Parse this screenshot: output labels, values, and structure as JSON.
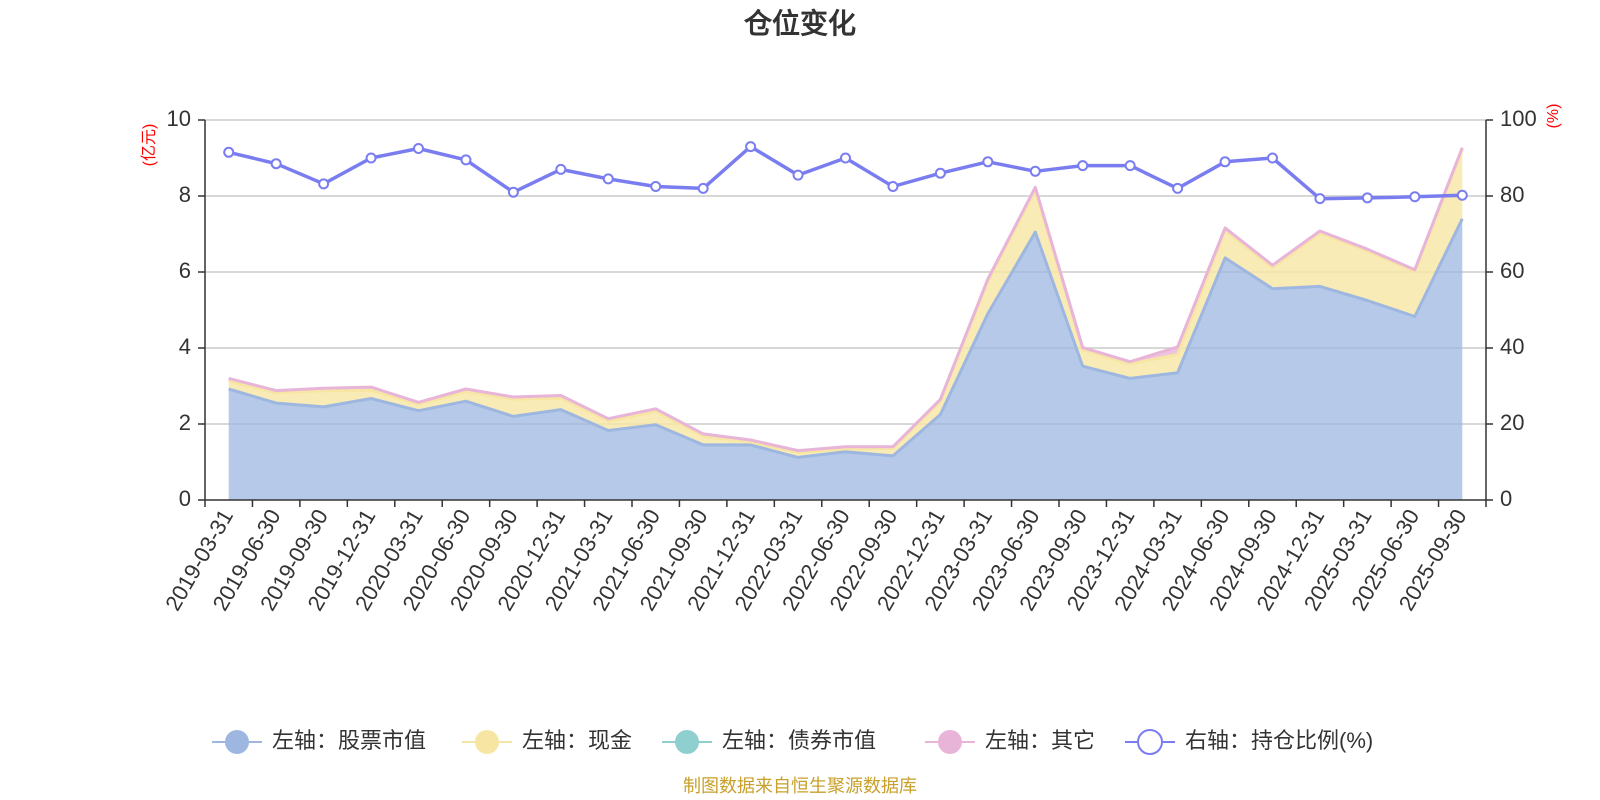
{
  "chart_data": {
    "type": "area",
    "title": "仓位变化",
    "left_axis_unit": "(亿元)",
    "right_axis_unit": "(%)",
    "ylim_left": [
      0,
      10
    ],
    "ylim_right": [
      0,
      100
    ],
    "left_ticks": [
      "0",
      "2",
      "4",
      "6",
      "8",
      "10"
    ],
    "right_ticks": [
      "0",
      "20",
      "40",
      "60",
      "80",
      "100"
    ],
    "categories": [
      "2019-03-31",
      "2019-06-30",
      "2019-09-30",
      "2019-12-31",
      "2020-03-31",
      "2020-06-30",
      "2020-09-30",
      "2020-12-31",
      "2021-03-31",
      "2021-06-30",
      "2021-09-30",
      "2021-12-31",
      "2022-03-31",
      "2022-06-30",
      "2022-09-30",
      "2022-12-31",
      "2023-03-31",
      "2023-06-30",
      "2023-09-30",
      "2023-12-31",
      "2024-03-31",
      "2024-06-30",
      "2024-09-30",
      "2024-12-31",
      "2025-03-31",
      "2025-06-30",
      "2025-09-30"
    ],
    "series": [
      {
        "name": "左轴：股票市值",
        "axis": "left",
        "color": "#9db7e0",
        "values": [
          2.92,
          2.55,
          2.45,
          2.67,
          2.35,
          2.6,
          2.2,
          2.38,
          1.83,
          1.98,
          1.45,
          1.45,
          1.12,
          1.27,
          1.16,
          2.25,
          4.9,
          7.05,
          3.52,
          3.2,
          3.35,
          6.37,
          5.56,
          5.62,
          5.25,
          4.83,
          7.4
        ]
      },
      {
        "name": "左轴：现金",
        "axis": "left",
        "color": "#f7e6a3",
        "values": [
          0.2,
          0.27,
          0.42,
          0.22,
          0.17,
          0.25,
          0.45,
          0.3,
          0.25,
          0.35,
          0.23,
          0.08,
          0.13,
          0.08,
          0.2,
          0.35,
          0.85,
          1.1,
          0.43,
          0.38,
          0.48,
          0.73,
          0.55,
          1.4,
          1.3,
          1.18,
          1.82
        ]
      },
      {
        "name": "左轴：债券市值",
        "axis": "left",
        "color": "#8fcfcf",
        "values": [
          0,
          0,
          0,
          0,
          0,
          0,
          0,
          0,
          0,
          0,
          0,
          0,
          0,
          0,
          0,
          0,
          0,
          0,
          0,
          0,
          0,
          0,
          0,
          0,
          0,
          0,
          0
        ]
      },
      {
        "name": "左轴：其它",
        "axis": "left",
        "color": "#e8b4d8",
        "values": [
          0.08,
          0.06,
          0.07,
          0.08,
          0.05,
          0.07,
          0.06,
          0.07,
          0.06,
          0.07,
          0.06,
          0.05,
          0.05,
          0.05,
          0.04,
          0.05,
          0.06,
          0.08,
          0.06,
          0.06,
          0.2,
          0.06,
          0.07,
          0.06,
          0.05,
          0.05,
          0.05
        ]
      },
      {
        "name": "右轴：持仓比例(%)",
        "axis": "right",
        "color": "#7a7df0",
        "values": [
          91.5,
          88.5,
          83.2,
          90,
          92.5,
          89.5,
          81,
          87,
          84.5,
          82.5,
          82,
          93,
          85.5,
          90,
          82.5,
          86,
          89,
          86.5,
          88,
          88,
          82,
          89,
          90,
          79.3,
          79.5,
          79.8,
          80.2
        ]
      }
    ],
    "legend_position": "bottom",
    "grid": true
  },
  "footer": {
    "source": "制图数据来自恒生聚源数据库"
  }
}
